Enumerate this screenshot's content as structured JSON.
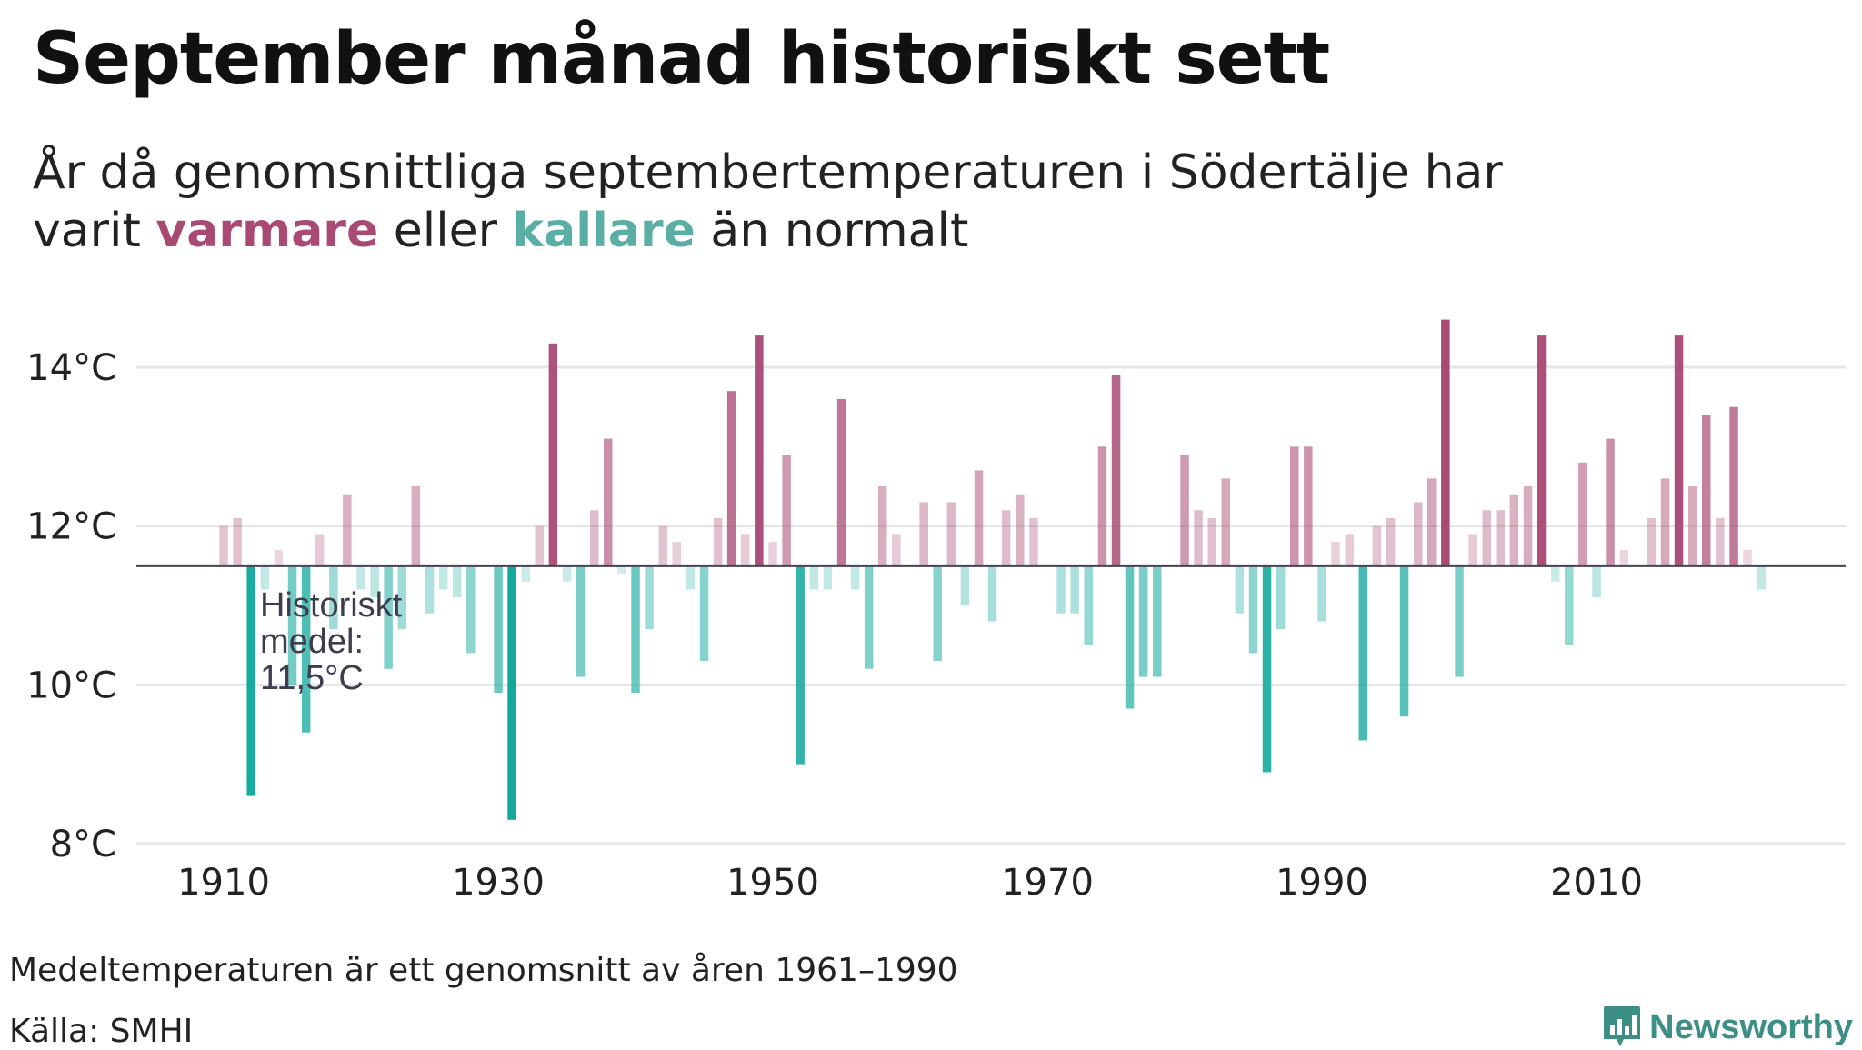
{
  "title": "September månad historiskt sett",
  "subtitle": {
    "line1": "År då genomsnittliga septembertemperaturen i Södertälje har",
    "line2_pre": "varit ",
    "warm_word": "varmare",
    "mid": " eller ",
    "cold_word": "kallare",
    "line2_post": " än normalt"
  },
  "colors": {
    "warm": "#a84a74",
    "cold": "#12a89c",
    "baseline": "#444455",
    "grid": "#e6e6e6",
    "brand": "#3d8f85"
  },
  "annotation": {
    "line1": "Historiskt",
    "line2": "medel:",
    "line3": "11,5°C"
  },
  "footnote": "Medeltemperaturen är ett genomsnitt av åren 1961–1990",
  "source": "Källa: SMHI",
  "brand": {
    "name": "Newsworthy",
    "icon": "bar-chart-badge-icon"
  },
  "chart_data": {
    "type": "bar",
    "title": "September månad historiskt sett",
    "xlabel": "",
    "ylabel": "",
    "baseline": 11.5,
    "ylim": [
      8,
      14.5
    ],
    "yticks": [
      8,
      10,
      12,
      14
    ],
    "ytick_labels": [
      "8°C",
      "10°C",
      "12°C",
      "14°C"
    ],
    "xticks": [
      1910,
      1930,
      1950,
      1970,
      1990,
      2010
    ],
    "xtick_labels": [
      "1910",
      "1930",
      "1950",
      "1970",
      "1990",
      "2010"
    ],
    "years": [
      1910,
      1911,
      1912,
      1913,
      1914,
      1915,
      1916,
      1917,
      1918,
      1919,
      1920,
      1921,
      1922,
      1923,
      1924,
      1925,
      1926,
      1927,
      1928,
      1929,
      1930,
      1931,
      1932,
      1933,
      1934,
      1935,
      1936,
      1937,
      1938,
      1939,
      1940,
      1941,
      1942,
      1943,
      1944,
      1945,
      1946,
      1947,
      1948,
      1949,
      1950,
      1951,
      1952,
      1953,
      1954,
      1955,
      1956,
      1957,
      1958,
      1959,
      1960,
      1961,
      1962,
      1963,
      1964,
      1965,
      1966,
      1967,
      1968,
      1969,
      1970,
      1971,
      1972,
      1973,
      1974,
      1975,
      1976,
      1977,
      1978,
      1979,
      1980,
      1981,
      1982,
      1983,
      1984,
      1985,
      1986,
      1987,
      1988,
      1989,
      1990,
      1991,
      1992,
      1993,
      1994,
      1995,
      1996,
      1997,
      1998,
      1999,
      2000,
      2001,
      2002,
      2003,
      2004,
      2005,
      2006,
      2007,
      2008,
      2009,
      2010,
      2011,
      2012,
      2013,
      2014,
      2015,
      2016,
      2017,
      2018,
      2019,
      2020,
      2021,
      2022
    ],
    "values": [
      12.0,
      12.1,
      8.6,
      11.2,
      11.7,
      10.0,
      9.4,
      11.9,
      10.7,
      12.4,
      11.2,
      11.1,
      10.2,
      10.7,
      12.5,
      10.9,
      11.2,
      11.1,
      10.4,
      11.5,
      9.9,
      8.3,
      11.3,
      12.0,
      14.3,
      11.3,
      10.1,
      12.2,
      13.1,
      11.4,
      9.9,
      10.7,
      12.0,
      11.8,
      11.2,
      10.3,
      12.1,
      13.7,
      11.9,
      14.4,
      11.8,
      12.9,
      9.0,
      11.2,
      11.2,
      13.6,
      11.2,
      10.2,
      12.5,
      11.9,
      11.5,
      12.3,
      10.3,
      12.3,
      11.0,
      12.7,
      10.8,
      12.2,
      12.4,
      12.1,
      11.5,
      10.9,
      10.9,
      10.5,
      13.0,
      13.9,
      9.7,
      10.1,
      10.1,
      11.5,
      12.9,
      12.2,
      12.1,
      12.6,
      10.9,
      10.4,
      8.9,
      10.7,
      13.0,
      13.0,
      10.8,
      11.8,
      11.9,
      9.3,
      12.0,
      12.1,
      9.6,
      12.3,
      12.6,
      14.6,
      10.1,
      11.9,
      12.2,
      12.2,
      12.4,
      12.5,
      14.4,
      11.3,
      10.5,
      12.8,
      11.1,
      13.1,
      11.7,
      11.5,
      12.1,
      12.6,
      14.4,
      12.5,
      13.4,
      12.1,
      13.5,
      11.7,
      11.2
    ]
  }
}
